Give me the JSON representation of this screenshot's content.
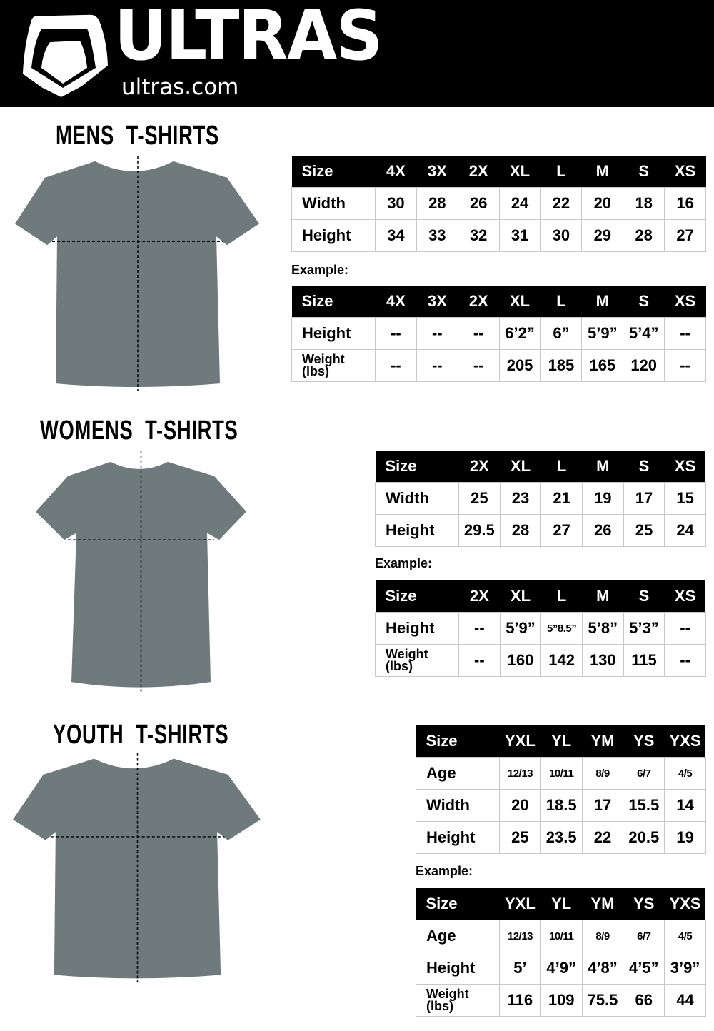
{
  "header": {
    "brand": "ULTRAS",
    "url": "ultras.com",
    "background": "#000000"
  },
  "sections": [
    {
      "id": "mens",
      "title": "MENS  T-SHIRTS",
      "example_label": "Example:",
      "size_table": {
        "header": [
          "Size",
          "4X",
          "3X",
          "2X",
          "XL",
          "L",
          "M",
          "S",
          "XS"
        ],
        "rows": [
          [
            "Width",
            "30",
            "28",
            "26",
            "24",
            "22",
            "20",
            "18",
            "16"
          ],
          [
            "Height",
            "34",
            "33",
            "32",
            "31",
            "30",
            "29",
            "28",
            "27"
          ]
        ]
      },
      "example_table": {
        "header": [
          "Size",
          "4X",
          "3X",
          "2X",
          "XL",
          "L",
          "M",
          "S",
          "XS"
        ],
        "rows": [
          [
            "Height",
            "--",
            "--",
            "--",
            "6’2”",
            "6”",
            "5’9”",
            "5’4”",
            "--"
          ],
          [
            "Weight (lbs)",
            "--",
            "--",
            "--",
            "205",
            "185",
            "165",
            "120",
            "--"
          ]
        ]
      }
    },
    {
      "id": "womens",
      "title": "WOMENS  T-SHIRTS",
      "example_label": "Example:",
      "size_table": {
        "header": [
          "Size",
          "2X",
          "XL",
          "L",
          "M",
          "S",
          "XS"
        ],
        "rows": [
          [
            "Width",
            "25",
            "23",
            "21",
            "19",
            "17",
            "15"
          ],
          [
            "Height",
            "29.5",
            "28",
            "27",
            "26",
            "25",
            "24"
          ]
        ]
      },
      "example_table": {
        "header": [
          "Size",
          "2X",
          "XL",
          "L",
          "M",
          "S",
          "XS"
        ],
        "rows": [
          [
            "Height",
            "--",
            "5’9”",
            "5”8.5”",
            "5’8”",
            "5’3”",
            "--"
          ],
          [
            "Weight (lbs)",
            "--",
            "160",
            "142",
            "130",
            "115",
            "--"
          ]
        ]
      }
    },
    {
      "id": "youth",
      "title": "YOUTH  T-SHIRTS",
      "example_label": "Example:",
      "size_table": {
        "header": [
          "Size",
          "YXL",
          "YL",
          "YM",
          "YS",
          "YXS"
        ],
        "rows": [
          [
            "Age",
            "12/13",
            "10/11",
            "8/9",
            "6/7",
            "4/5"
          ],
          [
            "Width",
            "20",
            "18.5",
            "17",
            "15.5",
            "14"
          ],
          [
            "Height",
            "25",
            "23.5",
            "22",
            "20.5",
            "19"
          ]
        ]
      },
      "example_table": {
        "header": [
          "Size",
          "YXL",
          "YL",
          "YM",
          "YS",
          "YXS"
        ],
        "rows": [
          [
            "Age",
            "12/13",
            "10/11",
            "8/9",
            "6/7",
            "4/5"
          ],
          [
            "Height",
            "5’",
            "4’9”",
            "4’8”",
            "4’5”",
            "3’9”"
          ],
          [
            "Weight (lbs)",
            "116",
            "109",
            "75.5",
            "66",
            "44"
          ]
        ]
      }
    }
  ],
  "colors": {
    "shirt": "#6f7a7c",
    "table_header": "#000000",
    "border": "#c8c8c8"
  }
}
